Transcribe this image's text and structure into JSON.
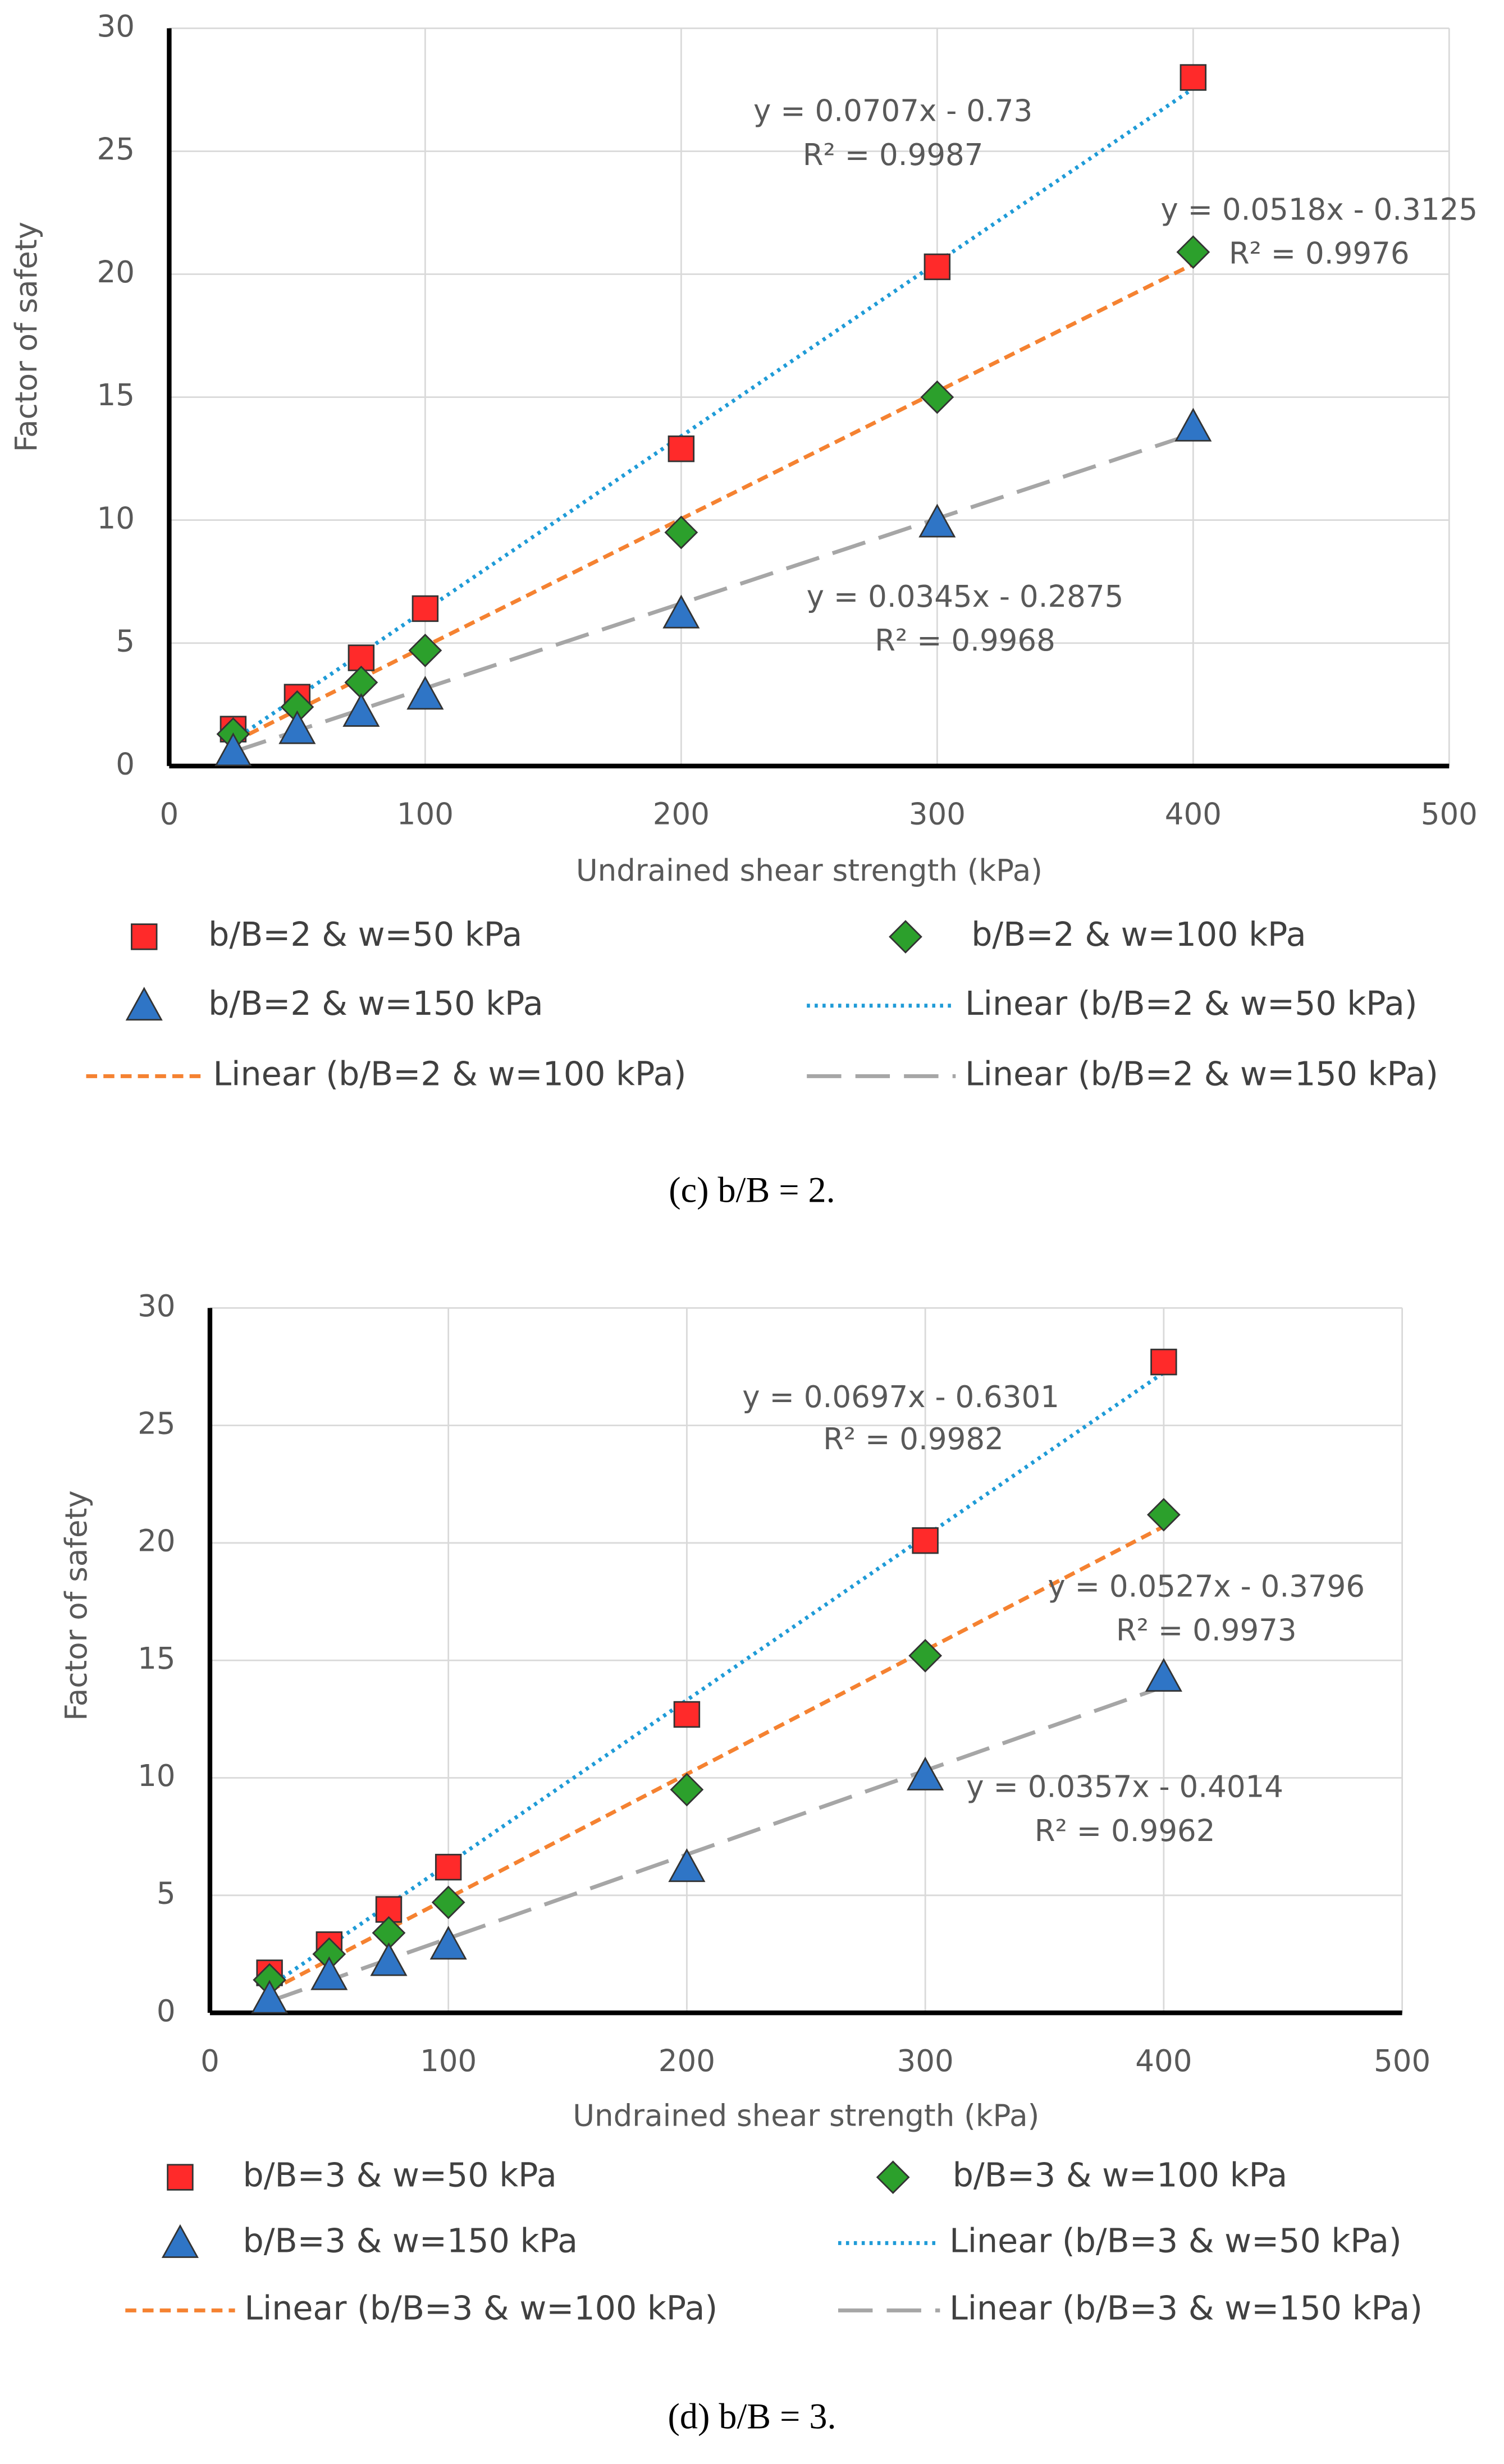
{
  "chart_data": [
    {
      "type": "scatter",
      "caption": "(c) b/B = 2.",
      "x_label": "Undrained shear strength (kPa)",
      "y_label": "Factor of safety",
      "x": [
        25,
        50,
        75,
        100,
        200,
        300,
        400
      ],
      "xlim": [
        0,
        500
      ],
      "xticks": [
        0,
        100,
        200,
        300,
        400,
        500
      ],
      "ylim": [
        0,
        30
      ],
      "yticks": [
        0,
        5,
        10,
        15,
        20,
        25,
        30
      ],
      "grid": true,
      "series": [
        {
          "name": "b/B=2 & w=50 kPa",
          "color": "#ff2a2a",
          "marker": "square",
          "values": [
            1.5,
            2.8,
            4.4,
            6.4,
            12.9,
            20.3,
            28.0
          ]
        },
        {
          "name": "b/B=2 & w=100 kPa",
          "color": "#2ca02c",
          "marker": "diamond",
          "values": [
            1.3,
            2.4,
            3.4,
            4.7,
            9.5,
            15.0,
            20.9
          ]
        },
        {
          "name": "b/B=2 & w=150 kPa",
          "color": "#2f75c6",
          "marker": "triangle",
          "values": [
            0.6,
            1.5,
            2.2,
            2.9,
            6.2,
            9.9,
            13.8
          ]
        }
      ],
      "trendlines": [
        {
          "name": "Linear (b/B=2 & w=50 kPa)",
          "color": "#1f9bd7",
          "dash": "2 3",
          "slope": 0.0707,
          "intercept": -0.73,
          "equation": "y = 0.0707x - 0.73",
          "r2": "R² = 0.9987"
        },
        {
          "name": "Linear (b/B=2 & w=100 kPa)",
          "color": "#f58231",
          "dash": "7 4",
          "slope": 0.0518,
          "intercept": -0.3125,
          "equation": "y = 0.0518x - 0.3125",
          "r2": "R² = 0.9976"
        },
        {
          "name": "Linear (b/B=2 & w=150 kPa)",
          "color": "#a6a6a6",
          "dash": "22 9",
          "slope": 0.0345,
          "intercept": -0.2875,
          "equation": "y = 0.0345x - 0.2875",
          "r2": "R² = 0.9968"
        }
      ]
    },
    {
      "type": "scatter",
      "caption": "(d) b/B = 3.",
      "x_label": "Undrained shear strength (kPa)",
      "y_label": "Factor of safety",
      "x": [
        25,
        50,
        75,
        100,
        200,
        300,
        400
      ],
      "xlim": [
        0,
        500
      ],
      "xticks": [
        0,
        100,
        200,
        300,
        400,
        500
      ],
      "ylim": [
        0,
        30
      ],
      "yticks": [
        0,
        5,
        10,
        15,
        20,
        25,
        30
      ],
      "grid": true,
      "series": [
        {
          "name": "b/B=3 & w=50 kPa",
          "color": "#ff2a2a",
          "marker": "square",
          "values": [
            1.7,
            2.9,
            4.4,
            6.2,
            12.7,
            20.1,
            27.7
          ]
        },
        {
          "name": "b/B=3 & w=100 kPa",
          "color": "#2ca02c",
          "marker": "diamond",
          "values": [
            1.4,
            2.5,
            3.4,
            4.7,
            9.5,
            15.2,
            21.2
          ]
        },
        {
          "name": "b/B=3 & w=150 kPa",
          "color": "#2f75c6",
          "marker": "triangle",
          "values": [
            0.6,
            1.6,
            2.2,
            2.9,
            6.2,
            10.1,
            14.3
          ]
        }
      ],
      "trendlines": [
        {
          "name": "Linear (b/B=3 & w=50 kPa)",
          "color": "#1f9bd7",
          "dash": "2 3",
          "slope": 0.0697,
          "intercept": -0.6301,
          "equation": "y = 0.0697x - 0.6301",
          "r2": "R² = 0.9982"
        },
        {
          "name": "Linear (b/B=3 & w=100 kPa)",
          "color": "#f58231",
          "dash": "7 4",
          "slope": 0.0527,
          "intercept": -0.3796,
          "equation": "y = 0.0527x - 0.3796",
          "r2": "R² = 0.9973"
        },
        {
          "name": "Linear (b/B=3 & w=150 kPa)",
          "color": "#a6a6a6",
          "dash": "22 9",
          "slope": 0.0357,
          "intercept": -0.4014,
          "equation": "y = 0.0357x - 0.4014",
          "r2": "R² = 0.9962"
        }
      ]
    }
  ]
}
